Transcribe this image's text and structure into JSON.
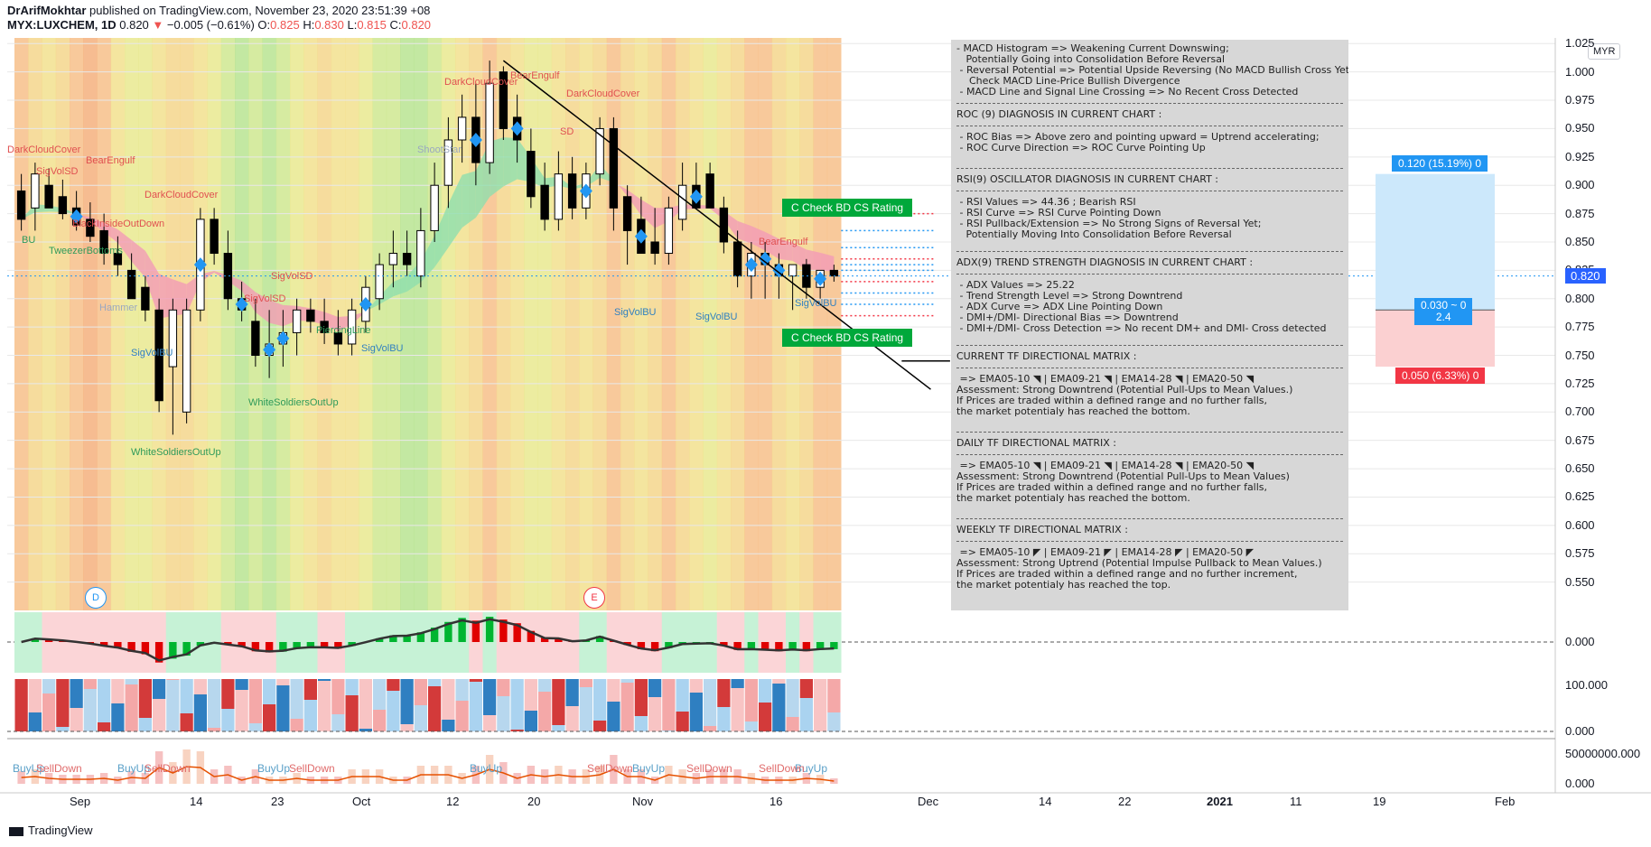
{
  "header": {
    "author": "DrArifMokhtar",
    "published": "published on TradingView.com, November 23, 2020 23:51:39 +08",
    "symbol": "MYX:LUXCHEM, 1D",
    "last": "0.820",
    "change": "−0.005 (−0.61%)",
    "o_label": "O:",
    "o": "0.825",
    "h_label": "H:",
    "h": "0.830",
    "l_label": "L:",
    "l": "0.815",
    "c_label": "C:",
    "c": "0.820"
  },
  "currency": "MYR",
  "last_price_label": "0.820",
  "price_axis": [
    "1.025",
    "1.000",
    "0.975",
    "0.950",
    "0.925",
    "0.900",
    "0.875",
    "0.850",
    "0.825",
    "0.800",
    "0.775",
    "0.750",
    "0.725",
    "0.700",
    "0.675",
    "0.650",
    "0.625",
    "0.600",
    "0.575",
    "0.550"
  ],
  "indicator_axis": {
    "macd_zero": "0.000",
    "osc_high": "100.000",
    "osc_low": "0.000",
    "vol_high": "50000000.000",
    "vol_low": "0.000"
  },
  "time_axis": [
    "Sep",
    "14",
    "23",
    "Oct",
    "12",
    "20",
    "Nov",
    "16",
    "Dec",
    "14",
    "22",
    "2021",
    "11",
    "19",
    "Feb"
  ],
  "diagnosis": {
    "macd": "- MACD Histogram => Weakening Current Downswing;\n   Potentially Going into Consolidation Before Reversal\n - Reversal Potential => Potential Upside Reversing (No MACD Bullish Cross Yet);\n    Check MACD Line-Price Bullish Divergence\n - MACD Line and Signal Line Crossing => No Recent Cross Detected",
    "roc_title": "ROC (9) DIAGNOSIS IN CURRENT CHART :",
    "roc": " - ROC Bias => Above zero and pointing upward = Uptrend accelerating;\n - ROC Curve Direction => ROC Curve Pointing Up",
    "rsi_title": "RSI(9) OSCILLATOR DIAGNOSIS IN CURRENT CHART :",
    "rsi": " - RSI Values => 44.36 ; Bearish RSI\n - RSI Curve => RSI Curve Pointing Down\n - RSI Pullback/Extension => No Strong Signs of Reversal Yet;\n   Potentially Moving Into Consolidation Before Reversal",
    "adx_title": "ADX(9) TREND STRENGTH DIAGNOSIS IN CURRENT CHART :",
    "adx": " - ADX Values => 25.22\n - Trend Strength Level => Strong Downtrend\n - ADX Curve => ADX Line Pointing Down\n - DMI+/DMI- Directional Bias => Downtrend\n - DMI+/DMI- Cross Detection => No recent DM+ and DMI- Cross detected",
    "current_title": "CURRENT TF DIRECTIONAL MATRIX :",
    "current": " => EMA05-10 ◥ | EMA09-21 ◥ | EMA14-28 ◥ | EMA20-50 ◥\nAssessment: Strong Downtrend (Potential Pull-Ups to Mean Values.)\nIf Prices are traded within a defined range and no further falls,\nthe market potentialy has reached the bottom.",
    "daily_title": "DAILY TF DIRECTIONAL MATRIX :",
    "daily": " => EMA05-10 ◥ | EMA09-21 ◥ | EMA14-28 ◥ | EMA20-50 ◥\nAssessment: Strong Downtrend (Potential Pull-Ups to Mean Values)\nIf Prices are traded within a defined range and no further falls,\nthe market potentialy has reached the bottom.",
    "weekly_title": "WEEKLY TF DIRECTIONAL MATRIX :",
    "weekly": " => EMA05-10 ◤ | EMA09-21 ◤ | EMA14-28 ◤ | EMA20-50 ◤\nAssessment: Strong Uptrend (Potential Impulse Pullback to Mean Values.)\nIf Prices are traded within a defined range and no further increment,\nthe market potentialy has reached the top."
  },
  "rating_buttons": [
    "C  Check BD CS Rating",
    "C  Check BD CS Rating"
  ],
  "position_tool": {
    "target": "0.120 (15.19%) 0",
    "ratio_line1": "0.030 ~ 0",
    "ratio_line2": "2.4",
    "stop": "0.050 (6.33%) 0"
  },
  "event_markers": [
    "D",
    "E"
  ],
  "pattern_labels": [
    "DarkCloudCover",
    "SigVolSD",
    "BearEngulf",
    "SD",
    "TweezerBottoms",
    "BU",
    "Hammer",
    "SigVolBU",
    "WhiteSoldiersOutUp",
    "BlackInsideOutDown",
    "PiercingLine",
    "ShootStar"
  ],
  "volume_labels": [
    "BuyUp",
    "SellDown"
  ],
  "brand": "TradingView",
  "colors": {
    "bull_candle": "#ffffff",
    "bear_candle": "#000000",
    "accent_blue": "#2962ff",
    "target_fill": "#cce8fb",
    "stop_fill": "#fbd0d1",
    "green_label": "#00a83b",
    "red_label": "#ff1f1f"
  },
  "chart_data": {
    "type": "candlestick",
    "title": "",
    "x": [
      "2020-08-31",
      "2020-09-01",
      "2020-09-02",
      "2020-09-03",
      "2020-09-04",
      "2020-09-07",
      "2020-09-08",
      "2020-09-09",
      "2020-09-10",
      "2020-09-11",
      "2020-09-14",
      "2020-09-15",
      "2020-09-17",
      "2020-09-18",
      "2020-09-21",
      "2020-09-22",
      "2020-09-23",
      "2020-09-24",
      "2020-09-25",
      "2020-09-28",
      "2020-09-29",
      "2020-09-30",
      "2020-10-01",
      "2020-10-02",
      "2020-10-05",
      "2020-10-06",
      "2020-10-07",
      "2020-10-08",
      "2020-10-09",
      "2020-10-12",
      "2020-10-13",
      "2020-10-14",
      "2020-10-15",
      "2020-10-16",
      "2020-10-19",
      "2020-10-20",
      "2020-10-21",
      "2020-10-22",
      "2020-10-23",
      "2020-10-26",
      "2020-10-27",
      "2020-10-28",
      "2020-10-29",
      "2020-10-30",
      "2020-11-02",
      "2020-11-03",
      "2020-11-04",
      "2020-11-05",
      "2020-11-06",
      "2020-11-09",
      "2020-11-10",
      "2020-11-11",
      "2020-11-12",
      "2020-11-13",
      "2020-11-16",
      "2020-11-17",
      "2020-11-18",
      "2020-11-19",
      "2020-11-20",
      "2020-11-23"
    ],
    "open": [
      0.895,
      0.88,
      0.9,
      0.89,
      0.88,
      0.87,
      0.86,
      0.84,
      0.825,
      0.81,
      0.79,
      0.74,
      0.7,
      0.79,
      0.87,
      0.84,
      0.8,
      0.78,
      0.75,
      0.76,
      0.77,
      0.79,
      0.78,
      0.77,
      0.76,
      0.78,
      0.8,
      0.83,
      0.84,
      0.82,
      0.86,
      0.9,
      0.94,
      0.96,
      0.92,
      1.0,
      0.96,
      0.93,
      0.9,
      0.87,
      0.91,
      0.88,
      0.91,
      0.95,
      0.89,
      0.87,
      0.85,
      0.84,
      0.87,
      0.9,
      0.91,
      0.88,
      0.85,
      0.82,
      0.84,
      0.83,
      0.82,
      0.83,
      0.81,
      0.825
    ],
    "high": [
      0.91,
      0.92,
      0.915,
      0.905,
      0.895,
      0.885,
      0.875,
      0.855,
      0.84,
      0.82,
      0.8,
      0.8,
      0.8,
      0.88,
      0.88,
      0.86,
      0.815,
      0.8,
      0.79,
      0.79,
      0.8,
      0.8,
      0.8,
      0.79,
      0.8,
      0.82,
      0.84,
      0.86,
      0.86,
      0.88,
      0.92,
      0.96,
      0.98,
      0.99,
      1.01,
      1.005,
      0.98,
      0.95,
      0.92,
      0.93,
      0.925,
      0.92,
      0.96,
      0.96,
      0.9,
      0.89,
      0.88,
      0.89,
      0.92,
      0.92,
      0.92,
      0.89,
      0.86,
      0.85,
      0.85,
      0.84,
      0.83,
      0.835,
      0.825,
      0.83
    ],
    "low": [
      0.86,
      0.86,
      0.88,
      0.87,
      0.86,
      0.85,
      0.83,
      0.82,
      0.8,
      0.78,
      0.7,
      0.68,
      0.69,
      0.78,
      0.83,
      0.79,
      0.78,
      0.74,
      0.73,
      0.74,
      0.75,
      0.77,
      0.76,
      0.75,
      0.75,
      0.77,
      0.79,
      0.81,
      0.82,
      0.81,
      0.85,
      0.88,
      0.92,
      0.9,
      0.91,
      0.94,
      0.92,
      0.88,
      0.86,
      0.86,
      0.87,
      0.87,
      0.9,
      0.86,
      0.83,
      0.84,
      0.83,
      0.83,
      0.86,
      0.88,
      0.88,
      0.84,
      0.81,
      0.8,
      0.8,
      0.8,
      0.79,
      0.8,
      0.8,
      0.815
    ],
    "close": [
      0.87,
      0.91,
      0.88,
      0.875,
      0.865,
      0.855,
      0.84,
      0.83,
      0.8,
      0.79,
      0.71,
      0.79,
      0.79,
      0.87,
      0.84,
      0.8,
      0.79,
      0.75,
      0.76,
      0.77,
      0.79,
      0.78,
      0.77,
      0.76,
      0.79,
      0.81,
      0.83,
      0.84,
      0.83,
      0.86,
      0.9,
      0.94,
      0.96,
      0.92,
      0.99,
      0.95,
      0.94,
      0.89,
      0.87,
      0.91,
      0.88,
      0.91,
      0.95,
      0.88,
      0.86,
      0.84,
      0.84,
      0.88,
      0.9,
      0.88,
      0.88,
      0.85,
      0.82,
      0.84,
      0.83,
      0.82,
      0.83,
      0.81,
      0.825,
      0.82
    ],
    "ylim": [
      0.525,
      1.03
    ],
    "xlabel": "",
    "ylabel": "",
    "trendline": {
      "from": [
        "2020-10-20",
        1.01
      ],
      "to": [
        "2020-12-03",
        0.72
      ]
    },
    "support_line": {
      "from": [
        "2020-11-30",
        0.745
      ],
      "to": [
        "2020-12-05",
        0.745
      ]
    },
    "current_price": 0.82,
    "position": {
      "entry": 0.79,
      "target": 0.91,
      "stop": 0.74,
      "from": "2020-12-16",
      "to": "2020-12-31"
    },
    "grid": true,
    "legend": "none"
  }
}
